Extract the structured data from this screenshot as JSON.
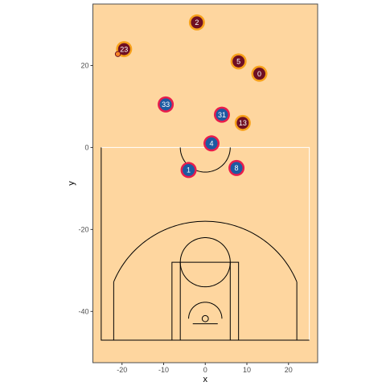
{
  "chart_data": {
    "type": "scatter",
    "title": "",
    "xlabel": "x",
    "ylabel": "y",
    "xlim": [
      -27,
      27
    ],
    "ylim": [
      -52.5,
      35
    ],
    "x_ticks": [
      -20,
      -10,
      0,
      10,
      20
    ],
    "y_ticks": [
      -40,
      -20,
      0,
      20
    ],
    "grid": false,
    "legend": "none",
    "colors": {
      "panel_background": "#FED69F",
      "panel_border": "#4D4D4D",
      "court_lines": "#000000",
      "baseline_white": "#FFFFFF",
      "team_a_fill": "#6F0F23",
      "team_a_ring": "#F7A11A",
      "team_b_fill": "#1D5AA2",
      "team_b_ring": "#E81C4C",
      "ball_fill": "#F58426",
      "ball_outline": "#6F0F23"
    },
    "series": [
      {
        "team": "a",
        "points": [
          {
            "label": "2",
            "x": -2,
            "y": 30.5
          },
          {
            "label": "23",
            "x": -19.5,
            "y": 24
          },
          {
            "label": "5",
            "x": 8,
            "y": 21
          },
          {
            "label": "0",
            "x": 13,
            "y": 18
          },
          {
            "label": "13",
            "x": 9,
            "y": 6
          }
        ]
      },
      {
        "team": "b",
        "points": [
          {
            "label": "33",
            "x": -9.5,
            "y": 10.5
          },
          {
            "label": "31",
            "x": 4,
            "y": 8
          },
          {
            "label": "4",
            "x": 1.5,
            "y": 1
          },
          {
            "label": "1",
            "x": -4,
            "y": -5.5
          },
          {
            "label": "8",
            "x": 7.5,
            "y": -5
          }
        ]
      }
    ],
    "ball": {
      "x": -21,
      "y": 22.8
    }
  }
}
